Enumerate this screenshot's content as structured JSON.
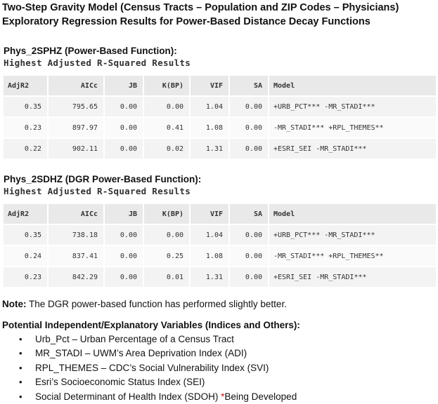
{
  "title": {
    "line1": "Two-Step Gravity Model (Census Tracts – Population and ZIP Codes – Physicians)",
    "line2": "Exploratory Regression Results for Power-Based Distance Decay Functions"
  },
  "columns": [
    "AdjR2",
    "AICc",
    "JB",
    "K(BP)",
    "VIF",
    "SA",
    "Model"
  ],
  "section1": {
    "label": "Phys_2SPHZ (Power-Based Function):",
    "subtitle": "Highest Adjusted R-Squared Results",
    "rows": [
      [
        "0.35",
        "795.65",
        "0.00",
        "0.00",
        "1.04",
        "0.00",
        "+URB_PCT*** -MR_STADI***"
      ],
      [
        "0.23",
        "897.97",
        "0.00",
        "0.41",
        "1.08",
        "0.00",
        "-MR_STADI*** +RPL_THEMES**"
      ],
      [
        "0.22",
        "902.11",
        "0.00",
        "0.02",
        "1.31",
        "0.00",
        "+ESRI_SEI -MR_STADI***"
      ]
    ]
  },
  "section2": {
    "label": "Phys_2SDHZ (DGR Power-Based Function):",
    "subtitle": "Highest Adjusted R-Squared Results",
    "rows": [
      [
        "0.35",
        "738.18",
        "0.00",
        "0.00",
        "1.04",
        "0.00",
        "+URB_PCT*** -MR_STADI***"
      ],
      [
        "0.24",
        "837.41",
        "0.00",
        "0.25",
        "1.08",
        "0.00",
        "-MR_STADI*** +RPL_THEMES**"
      ],
      [
        "0.23",
        "842.29",
        "0.00",
        "0.01",
        "1.31",
        "0.00",
        "+ESRI_SEI -MR_STADI***"
      ]
    ]
  },
  "note": {
    "label": "Note:",
    "text": " The DGR power-based function has performed slightly better."
  },
  "variables": {
    "title": "Potential Independent/Explanatory Variables (Indices and Others):",
    "bullet": "•",
    "items": [
      "Urb_Pct – Urban Percentage of a Census Tract",
      "MR_STADI – UWM’s Area Deprivation Index (ADI)",
      "RPL_THEMES – CDC’s Social Vulnerability Index (SVI)",
      "Esri’s Socioeconomic Status Index (SEI)",
      "Social Determinant of Health Index (SDOH) "
    ],
    "last_star": "*",
    "last_suffix": "Being Developed"
  },
  "colors": {
    "star": "#d01010",
    "header_bg": "#e9e9e9",
    "row_bg": "#f3f3f3"
  }
}
